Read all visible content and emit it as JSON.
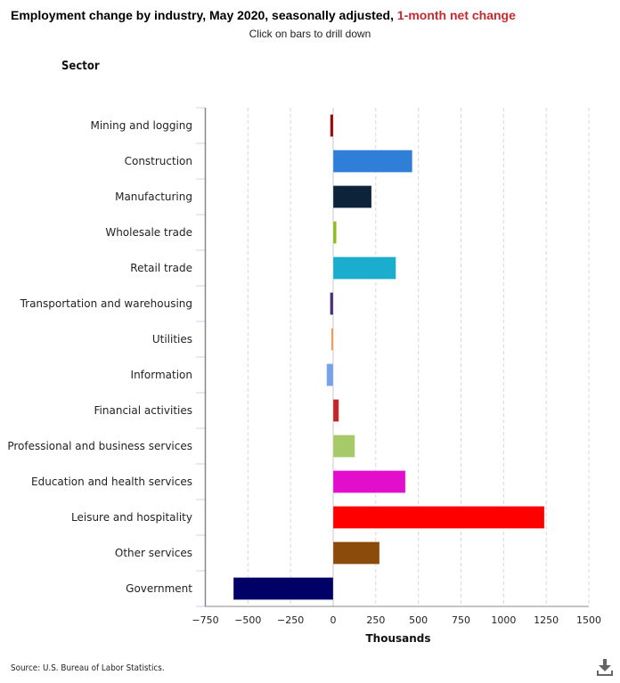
{
  "header": {
    "title_main": "Employment change by industry, May 2020, seasonally adjusted, ",
    "title_accent": "1-month net change",
    "subtitle": "Click on bars to drill down",
    "category_axis_title": "Sector"
  },
  "footer": {
    "source": "Source: U.S. Bureau of Labor Statistics.",
    "download_icon": "download-icon"
  },
  "colors": {
    "title_accent": "#c8282e",
    "gridline": "#d8d8d8",
    "axis_line": "#888888",
    "tick_mark": "#ccd6eb"
  },
  "chart_data": {
    "type": "bar",
    "orientation": "horizontal",
    "title": "Employment change by industry, May 2020, seasonally adjusted, 1-month net change",
    "subtitle": "Click on bars to drill down",
    "xlabel": "Thousands",
    "ylabel": "Sector",
    "xlim": [
      -750,
      1500
    ],
    "xticks": [
      -750,
      -500,
      -250,
      0,
      250,
      500,
      750,
      1000,
      1250,
      1500
    ],
    "grid": true,
    "legend": "none",
    "categories": [
      "Mining and logging",
      "Construction",
      "Manufacturing",
      "Wholesale trade",
      "Retail trade",
      "Transportation and warehousing",
      "Utilities",
      "Information",
      "Financial activities",
      "Professional and business services",
      "Education and health services",
      "Leisure and hospitality",
      "Other services",
      "Government"
    ],
    "values": [
      -17,
      464,
      225,
      19,
      368,
      -18,
      -11,
      -38,
      33,
      127,
      424,
      1239,
      272,
      -585
    ],
    "bar_colors": [
      "#990000",
      "#2f7ed8",
      "#0d233a",
      "#8bbc21",
      "#1aadce",
      "#492970",
      "#f28f43",
      "#77a1e5",
      "#c42525",
      "#a6c96a",
      "#e30ecc",
      "#ff0000",
      "#8b4b0b",
      "#000066"
    ],
    "source": "Source: U.S. Bureau of Labor Statistics."
  }
}
